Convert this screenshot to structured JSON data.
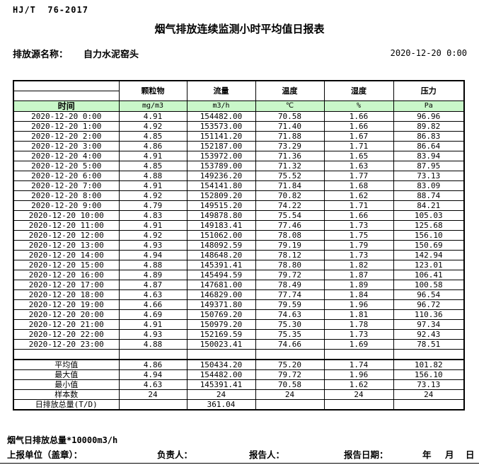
{
  "header": {
    "standard": "HJ/T  76-2017",
    "title": "烟气排放连续监测小时平均值日报表",
    "source_label": "排放源名称：",
    "source_name": "自力水泥窑头",
    "datetime": "2020-12-20 0:00"
  },
  "table": {
    "time_header": "时间",
    "columns": [
      "颗粒物",
      "流量",
      "温度",
      "湿度",
      "压力"
    ],
    "units": [
      "mg/m3",
      "m3/h",
      "℃",
      "%",
      "Pa"
    ],
    "rows": [
      {
        "time": "2020-12-20 0:00",
        "values": [
          "4.91",
          "154482.00",
          "70.58",
          "1.66",
          "96.96"
        ]
      },
      {
        "time": "2020-12-20 1:00",
        "values": [
          "4.92",
          "153573.00",
          "71.40",
          "1.66",
          "89.82"
        ]
      },
      {
        "time": "2020-12-20 2:00",
        "values": [
          "4.85",
          "151141.20",
          "71.88",
          "1.67",
          "86.83"
        ]
      },
      {
        "time": "2020-12-20 3:00",
        "values": [
          "4.86",
          "152187.00",
          "73.29",
          "1.71",
          "86.64"
        ]
      },
      {
        "time": "2020-12-20 4:00",
        "values": [
          "4.91",
          "153972.00",
          "71.36",
          "1.65",
          "83.94"
        ]
      },
      {
        "time": "2020-12-20 5:00",
        "values": [
          "4.85",
          "153789.00",
          "71.32",
          "1.63",
          "87.95"
        ]
      },
      {
        "time": "2020-12-20 6:00",
        "values": [
          "4.88",
          "149236.20",
          "75.52",
          "1.77",
          "73.13"
        ]
      },
      {
        "time": "2020-12-20 7:00",
        "values": [
          "4.91",
          "154141.80",
          "71.84",
          "1.68",
          "83.09"
        ]
      },
      {
        "time": "2020-12-20 8:00",
        "values": [
          "4.92",
          "152809.20",
          "70.82",
          "1.62",
          "88.74"
        ]
      },
      {
        "time": "2020-12-20 9:00",
        "values": [
          "4.79",
          "149515.20",
          "74.22",
          "1.71",
          "84.21"
        ]
      },
      {
        "time": "2020-12-20 10:00",
        "values": [
          "4.83",
          "149878.80",
          "75.54",
          "1.66",
          "105.03"
        ]
      },
      {
        "time": "2020-12-20 11:00",
        "values": [
          "4.91",
          "149183.41",
          "77.46",
          "1.73",
          "125.68"
        ]
      },
      {
        "time": "2020-12-20 12:00",
        "values": [
          "4.92",
          "151062.00",
          "78.08",
          "1.75",
          "156.10"
        ]
      },
      {
        "time": "2020-12-20 13:00",
        "values": [
          "4.93",
          "148092.59",
          "79.19",
          "1.79",
          "150.69"
        ]
      },
      {
        "time": "2020-12-20 14:00",
        "values": [
          "4.94",
          "148648.20",
          "78.12",
          "1.73",
          "142.94"
        ]
      },
      {
        "time": "2020-12-20 15:00",
        "values": [
          "4.88",
          "145391.41",
          "78.80",
          "1.82",
          "123.01"
        ]
      },
      {
        "time": "2020-12-20 16:00",
        "values": [
          "4.89",
          "145494.59",
          "79.72",
          "1.87",
          "106.41"
        ]
      },
      {
        "time": "2020-12-20 17:00",
        "values": [
          "4.87",
          "147681.00",
          "78.49",
          "1.89",
          "100.58"
        ]
      },
      {
        "time": "2020-12-20 18:00",
        "values": [
          "4.63",
          "146829.00",
          "77.74",
          "1.84",
          "96.54"
        ]
      },
      {
        "time": "2020-12-20 19:00",
        "values": [
          "4.66",
          "149371.80",
          "79.59",
          "1.96",
          "96.72"
        ]
      },
      {
        "time": "2020-12-20 20:00",
        "values": [
          "4.69",
          "150769.20",
          "74.63",
          "1.81",
          "110.36"
        ]
      },
      {
        "time": "2020-12-20 21:00",
        "values": [
          "4.91",
          "150979.20",
          "75.30",
          "1.78",
          "97.34"
        ]
      },
      {
        "time": "2020-12-20 22:00",
        "values": [
          "4.93",
          "152169.59",
          "75.35",
          "1.73",
          "92.43"
        ]
      },
      {
        "time": "2020-12-20 23:00",
        "values": [
          "4.88",
          "150023.41",
          "74.66",
          "1.69",
          "78.51"
        ]
      }
    ],
    "summary": [
      {
        "label": "平均值",
        "values": [
          "4.86",
          "150434.20",
          "75.20",
          "1.74",
          "101.82"
        ]
      },
      {
        "label": "最大值",
        "values": [
          "4.94",
          "154482.00",
          "79.72",
          "1.96",
          "156.10"
        ]
      },
      {
        "label": "最小值",
        "values": [
          "4.63",
          "145391.41",
          "70.58",
          "1.62",
          "73.13"
        ]
      },
      {
        "label": "样本数",
        "values": [
          "24",
          "24",
          "24",
          "24",
          "24"
        ]
      },
      {
        "label": "日排放总量(T/D)",
        "values": [
          "",
          "361.04",
          "",
          "",
          ""
        ]
      }
    ]
  },
  "footer": {
    "note": "烟气日排放总量*10000m3/h",
    "report_unit_label": "上报单位（盖章）：",
    "responsible_label": "负责人：",
    "reporter_label": "报告人：",
    "report_date_label": "报告日期：",
    "year_label": "年",
    "month_label": "月",
    "day_label": "日"
  },
  "colors": {
    "unit_row_bg": "#c9f7c9",
    "border": "#000000"
  }
}
